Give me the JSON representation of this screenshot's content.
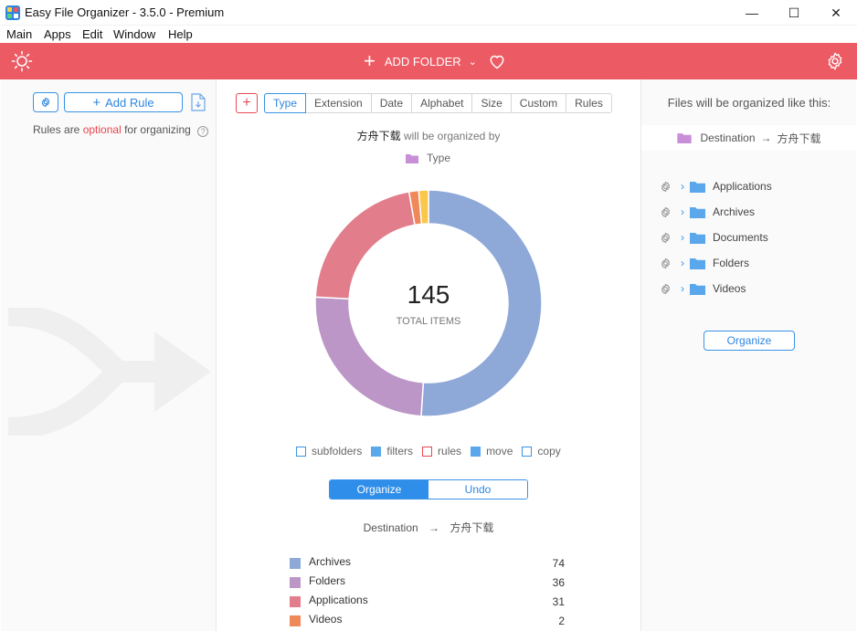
{
  "window": {
    "title": "Easy File Organizer - 3.5.0 - Premium"
  },
  "menu": [
    "Main",
    "Apps",
    "Edit",
    "Window",
    "Help"
  ],
  "topbar": {
    "add_folder_label": "ADD FOLDER",
    "accent": "#ec5a64"
  },
  "left": {
    "add_rule_label": "Add Rule",
    "note_prefix": "Rules are",
    "note_optional": "optional",
    "note_suffix": "for organizing"
  },
  "center": {
    "tabs": [
      "Type",
      "Extension",
      "Date",
      "Alphabet",
      "Size",
      "Custom",
      "Rules"
    ],
    "active_tab": "Type",
    "folder_name": "方舟下载",
    "organized_by_text": "will be organized by",
    "organized_by_value": "Type",
    "total": "145",
    "total_label": "TOTAL ITEMS",
    "legend": [
      {
        "label": "subfolders",
        "color": "#ffffff",
        "border": "#3a93e6"
      },
      {
        "label": "filters",
        "color": "#5aa7ec",
        "border": "#5aa7ec"
      },
      {
        "label": "rules",
        "color": "#ffffff",
        "border": "#e8474f"
      },
      {
        "label": "move",
        "color": "#5aa7ec",
        "border": "#5aa7ec"
      },
      {
        "label": "copy",
        "color": "#ffffff",
        "border": "#3a93e6"
      }
    ],
    "organize_label": "Organize",
    "undo_label": "Undo",
    "destination_label": "Destination",
    "destination_value": "方舟下载",
    "stats": [
      {
        "label": "Archives",
        "count": "74",
        "color": "#8ea8d7"
      },
      {
        "label": "Folders",
        "count": "36",
        "color": "#bc96c6"
      },
      {
        "label": "Applications",
        "count": "31",
        "color": "#e27d8b"
      },
      {
        "label": "Videos",
        "count": "2",
        "color": "#f0895a"
      }
    ]
  },
  "chart_data": {
    "type": "pie",
    "categories": [
      "Archives",
      "Folders",
      "Applications",
      "Videos",
      "Documents"
    ],
    "values": [
      74,
      36,
      31,
      2,
      2
    ],
    "colors": [
      "#8ea8d7",
      "#bc96c6",
      "#e27d8b",
      "#f0895a",
      "#f9c749"
    ]
  },
  "right": {
    "title": "Files will be organized like this:",
    "dest_label": "Destination",
    "dest_value": "方舟下载",
    "folders": [
      "Applications",
      "Archives",
      "Documents",
      "Folders",
      "Videos"
    ],
    "organize_label": "Organize"
  }
}
